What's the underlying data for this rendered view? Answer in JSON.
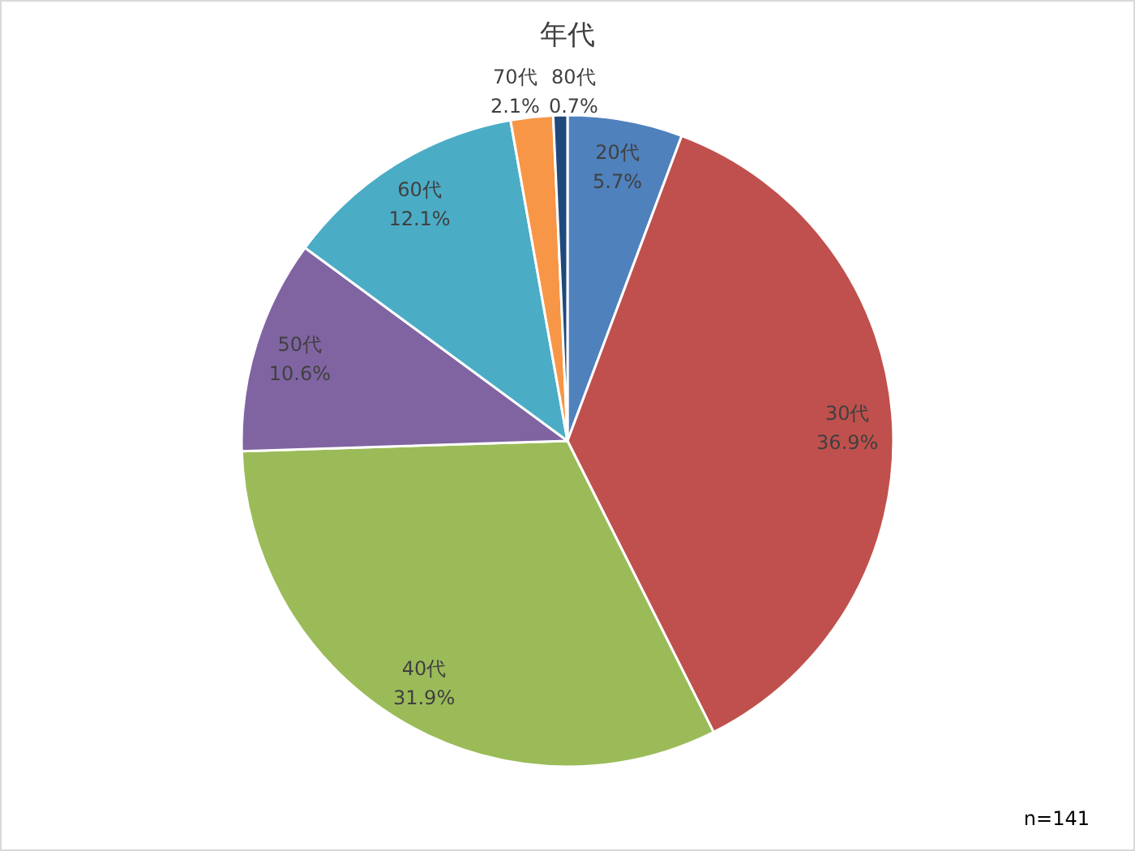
{
  "chart_data": {
    "type": "pie",
    "title": "年代",
    "categories": [
      "20代",
      "30代",
      "40代",
      "50代",
      "60代",
      "70代",
      "80代"
    ],
    "values": [
      5.7,
      36.9,
      31.9,
      10.6,
      12.1,
      2.1,
      0.7
    ],
    "value_labels": [
      "5.7%",
      "36.9%",
      "31.9%",
      "10.6%",
      "12.1%",
      "2.1%",
      "0.7%"
    ],
    "colors": [
      "#4f81bd",
      "#c0504d",
      "#9bbb59",
      "#8064a2",
      "#4bacc6",
      "#f79646",
      "#1f497d"
    ],
    "annotations": [
      "n=141"
    ]
  }
}
